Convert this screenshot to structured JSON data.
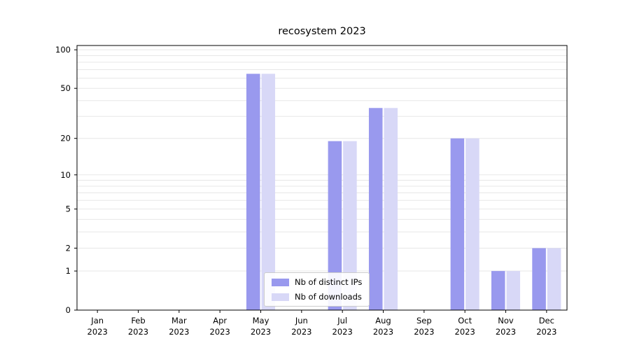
{
  "chart_data": {
    "type": "bar",
    "title": "recosystem 2023",
    "categories": [
      "Jan",
      "Feb",
      "Mar",
      "Apr",
      "May",
      "Jun",
      "Jul",
      "Aug",
      "Sep",
      "Oct",
      "Nov",
      "Dec"
    ],
    "x_year_label": "2023",
    "yscale": "log1p",
    "ylim": [
      0,
      108
    ],
    "yticks": [
      0,
      1,
      2,
      5,
      10,
      20,
      50,
      100
    ],
    "gridlines": [
      1,
      2,
      3,
      4,
      5,
      6,
      7,
      8,
      9,
      10,
      20,
      30,
      40,
      50,
      60,
      70,
      80,
      90,
      100
    ],
    "grid": "on",
    "legend_position": "lower center",
    "series": [
      {
        "name": "Nb of distinct IPs",
        "color": "#9999ee",
        "values": [
          0,
          0,
          0,
          0,
          65,
          0,
          19,
          35,
          0,
          20,
          1,
          2
        ]
      },
      {
        "name": "Nb of downloads",
        "color": "#d8d8f7",
        "values": [
          0,
          0,
          0,
          0,
          65,
          0,
          19,
          35,
          0,
          20,
          1,
          2
        ]
      }
    ]
  }
}
